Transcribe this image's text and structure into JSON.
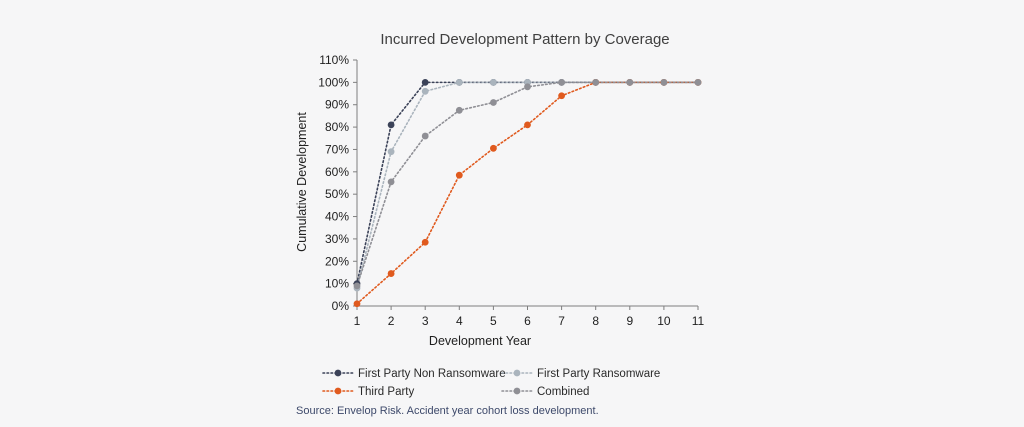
{
  "chart_data": {
    "type": "line",
    "title": "Incurred Development Pattern by Coverage",
    "xlabel": "Development Year",
    "ylabel": "Cumulative Development",
    "x": [
      1,
      2,
      3,
      4,
      5,
      6,
      7,
      8,
      9,
      10,
      11
    ],
    "xlim": [
      1,
      11
    ],
    "ylim": [
      0,
      110
    ],
    "ytick_step": 10,
    "ytick_suffix": "%",
    "grid": false,
    "legend_position": "bottom",
    "series": [
      {
        "name": "First Party Non Ransomware",
        "color": "#3b4258",
        "values": [
          10,
          81,
          100,
          100,
          100,
          100,
          100,
          100,
          100,
          100,
          100
        ]
      },
      {
        "name": "First Party Ransomware",
        "color": "#aab4bd",
        "values": [
          8,
          69,
          96,
          100,
          100,
          100,
          100,
          100,
          100,
          100,
          100
        ]
      },
      {
        "name": "Third Party",
        "color": "#e05a1e",
        "values": [
          1,
          14.5,
          28.5,
          58.5,
          70.5,
          81,
          94,
          100,
          100,
          100,
          100
        ]
      },
      {
        "name": "Combined",
        "color": "#8f8f95",
        "values": [
          9,
          55.5,
          76,
          87.5,
          91,
          98,
          100,
          100,
          100,
          100,
          100
        ]
      }
    ]
  },
  "source_note": "Source: Envelop Risk. Accident year cohort loss development."
}
